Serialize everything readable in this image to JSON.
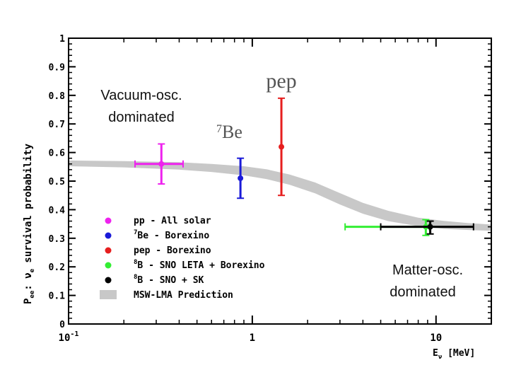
{
  "chart_data": {
    "type": "scatter",
    "x_scale": "log",
    "xlim": [
      0.1,
      20
    ],
    "ylim": [
      0,
      1
    ],
    "x_ticks": [
      {
        "value": 0.1,
        "base": "10",
        "exp": "-1"
      },
      {
        "value": 1,
        "base": "1",
        "exp": ""
      },
      {
        "value": 10,
        "base": "10",
        "exp": ""
      }
    ],
    "y_ticks": [
      {
        "value": 0,
        "label": "0"
      },
      {
        "value": 0.1,
        "label": "0.1"
      },
      {
        "value": 0.2,
        "label": "0.2"
      },
      {
        "value": 0.3,
        "label": "0.3"
      },
      {
        "value": 0.4,
        "label": "0.4"
      },
      {
        "value": 0.5,
        "label": "0.5"
      },
      {
        "value": 0.6,
        "label": "0.6"
      },
      {
        "value": 0.7,
        "label": "0.7"
      },
      {
        "value": 0.8,
        "label": "0.8"
      },
      {
        "value": 0.9,
        "label": "0.9"
      },
      {
        "value": 1,
        "label": "1"
      }
    ],
    "ylabel": {
      "main": "P",
      "sub": "ee",
      "rest": ":  ν",
      "rest_sub": "e",
      "tail": " survival probability"
    },
    "xlabel": {
      "main": "E",
      "sub": "ν",
      "tail": " [MeV]"
    },
    "band": {
      "name": "MSW-LMA Prediction",
      "color": "#c8c8c8",
      "points": [
        {
          "x": 0.1,
          "lo": 0.552,
          "hi": 0.572
        },
        {
          "x": 0.2,
          "lo": 0.548,
          "hi": 0.57
        },
        {
          "x": 0.4,
          "lo": 0.54,
          "hi": 0.566
        },
        {
          "x": 0.6,
          "lo": 0.532,
          "hi": 0.56
        },
        {
          "x": 0.9,
          "lo": 0.52,
          "hi": 0.552
        },
        {
          "x": 1.2,
          "lo": 0.507,
          "hi": 0.541
        },
        {
          "x": 1.6,
          "lo": 0.487,
          "hi": 0.523
        },
        {
          "x": 2.2,
          "lo": 0.457,
          "hi": 0.495
        },
        {
          "x": 3.0,
          "lo": 0.418,
          "hi": 0.458
        },
        {
          "x": 4.0,
          "lo": 0.386,
          "hi": 0.424
        },
        {
          "x": 5.5,
          "lo": 0.36,
          "hi": 0.396
        },
        {
          "x": 8.0,
          "lo": 0.342,
          "hi": 0.372
        },
        {
          "x": 11.0,
          "lo": 0.333,
          "hi": 0.361
        },
        {
          "x": 15.0,
          "lo": 0.329,
          "hi": 0.353
        },
        {
          "x": 20.0,
          "lo": 0.326,
          "hi": 0.348
        }
      ]
    },
    "series": [
      {
        "name": "pp - All solar",
        "legend_main": "pp - All solar",
        "legend_sup": "",
        "color": "#ee22ee",
        "x": 0.32,
        "y": 0.56,
        "x_err": [
          0.23,
          0.42
        ],
        "y_err": [
          0.49,
          0.63
        ]
      },
      {
        "name": "7Be - Borexino",
        "legend_main": "Be - Borexino",
        "legend_sup": "7",
        "color": "#1a1ad8",
        "x": 0.862,
        "y": 0.51,
        "x_err": [
          0.862,
          0.862
        ],
        "y_err": [
          0.44,
          0.58
        ]
      },
      {
        "name": "pep - Borexino",
        "legend_main": "pep - Borexino",
        "legend_sup": "",
        "color": "#e61e1e",
        "x": 1.44,
        "y": 0.62,
        "x_err": [
          1.44,
          1.44
        ],
        "y_err": [
          0.45,
          0.79
        ]
      },
      {
        "name": "8B - SNO LETA + Borexino",
        "legend_main": "B - SNO LETA + Borexino",
        "legend_sup": "8",
        "color": "#33ee33",
        "x": 8.8,
        "y": 0.34,
        "x_err": [
          3.2,
          9.2
        ],
        "y_err": [
          0.31,
          0.365
        ]
      },
      {
        "name": "8B - SNO + SK",
        "legend_main": "B - SNO + SK",
        "legend_sup": "8",
        "color": "#000000",
        "x": 9.3,
        "y": 0.34,
        "x_err": [
          5.0,
          16.0
        ],
        "y_err": [
          0.315,
          0.36
        ]
      }
    ],
    "annotations": [
      {
        "id": "vacuum-line1",
        "text": "Vacuum-osc."
      },
      {
        "id": "vacuum-line2",
        "text": "dominated"
      },
      {
        "id": "matter-line1",
        "text": "Matter-osc."
      },
      {
        "id": "matter-line2",
        "text": "dominated"
      },
      {
        "id": "be7-label-sup",
        "text": "7"
      },
      {
        "id": "be7-label-main",
        "text": "Be"
      },
      {
        "id": "pep-label",
        "text": "pep"
      }
    ]
  }
}
